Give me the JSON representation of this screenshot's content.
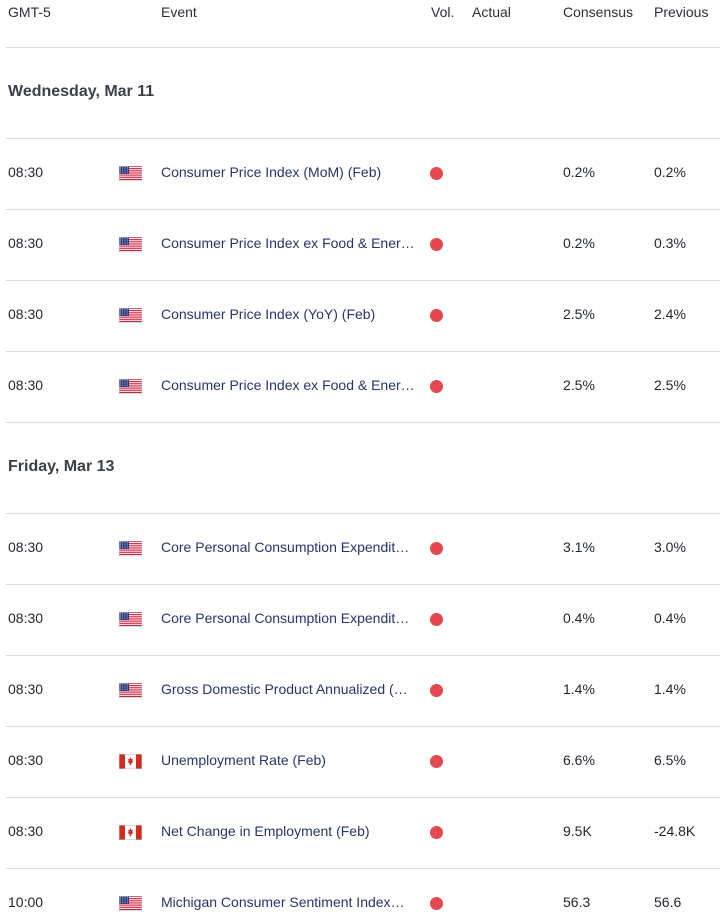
{
  "header": {
    "timezone": "GMT-5",
    "event": "Event",
    "vol": "Vol.",
    "actual": "Actual",
    "consensus": "Consensus",
    "previous": "Previous"
  },
  "colors": {
    "event_text": "#27356b",
    "volatility_high": "#e5484f",
    "divider": "#d9dce1"
  },
  "days": [
    {
      "label": "Wednesday, Mar 11",
      "events": [
        {
          "time": "08:30",
          "flag": "us-flag-icon",
          "event": "Consumer Price Index (MoM) (Feb)",
          "volatility": "high",
          "actual": "",
          "consensus": "0.2%",
          "previous": "0.2%"
        },
        {
          "time": "08:30",
          "flag": "us-flag-icon",
          "event": "Consumer Price Index ex Food & Ener…",
          "volatility": "high",
          "actual": "",
          "consensus": "0.2%",
          "previous": "0.3%"
        },
        {
          "time": "08:30",
          "flag": "us-flag-icon",
          "event": "Consumer Price Index (YoY) (Feb)",
          "volatility": "high",
          "actual": "",
          "consensus": "2.5%",
          "previous": "2.4%"
        },
        {
          "time": "08:30",
          "flag": "us-flag-icon",
          "event": "Consumer Price Index ex Food & Ener…",
          "volatility": "high",
          "actual": "",
          "consensus": "2.5%",
          "previous": "2.5%"
        }
      ]
    },
    {
      "label": "Friday, Mar 13",
      "events": [
        {
          "time": "08:30",
          "flag": "us-flag-icon",
          "event": "Core Personal Consumption Expendit…",
          "volatility": "high",
          "actual": "",
          "consensus": "3.1%",
          "previous": "3.0%"
        },
        {
          "time": "08:30",
          "flag": "us-flag-icon",
          "event": "Core Personal Consumption Expendit…",
          "volatility": "high",
          "actual": "",
          "consensus": "0.4%",
          "previous": "0.4%"
        },
        {
          "time": "08:30",
          "flag": "us-flag-icon",
          "event": "Gross Domestic Product Annualized (…",
          "volatility": "high",
          "actual": "",
          "consensus": "1.4%",
          "previous": "1.4%"
        },
        {
          "time": "08:30",
          "flag": "canada-flag-icon",
          "event": "Unemployment Rate (Feb)",
          "volatility": "high",
          "actual": "",
          "consensus": "6.6%",
          "previous": "6.5%"
        },
        {
          "time": "08:30",
          "flag": "canada-flag-icon",
          "event": "Net Change in Employment (Feb)",
          "volatility": "high",
          "actual": "",
          "consensus": "9.5K",
          "previous": "-24.8K"
        },
        {
          "time": "10:00",
          "flag": "us-flag-icon",
          "event": "Michigan Consumer Sentiment Index…",
          "volatility": "high",
          "actual": "",
          "consensus": "56.3",
          "previous": "56.6"
        }
      ]
    }
  ]
}
